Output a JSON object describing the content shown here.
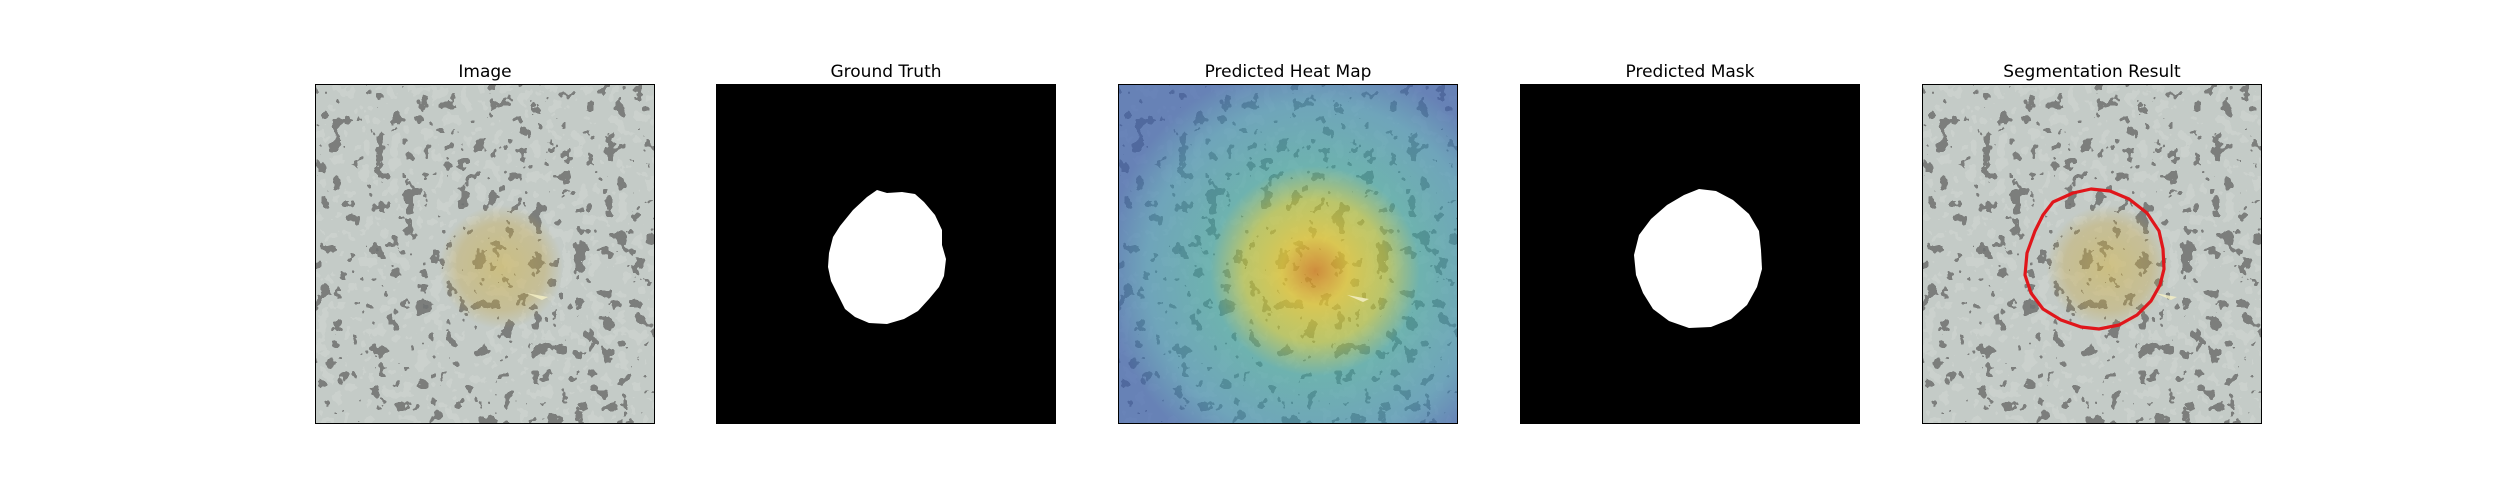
{
  "figure": {
    "panels": [
      {
        "id": "image",
        "title": "Image"
      },
      {
        "id": "ground-truth",
        "title": "Ground Truth"
      },
      {
        "id": "heatmap",
        "title": "Predicted Heat Map"
      },
      {
        "id": "mask",
        "title": "Predicted Mask"
      },
      {
        "id": "segmentation",
        "title": "Segmentation Result"
      }
    ]
  },
  "colors": {
    "frame": "#000000",
    "background": "#ffffff",
    "mask_fill": "#ffffff",
    "mask_background": "#000000",
    "contour": "#e0161b",
    "texture_light": "#97a39d",
    "texture_dark": "#2d302f",
    "highlight": "#c7a641",
    "heat_low": "#3b6fb0",
    "heat_mid": "#3aa3a0",
    "heat_high": "#e0c532"
  }
}
